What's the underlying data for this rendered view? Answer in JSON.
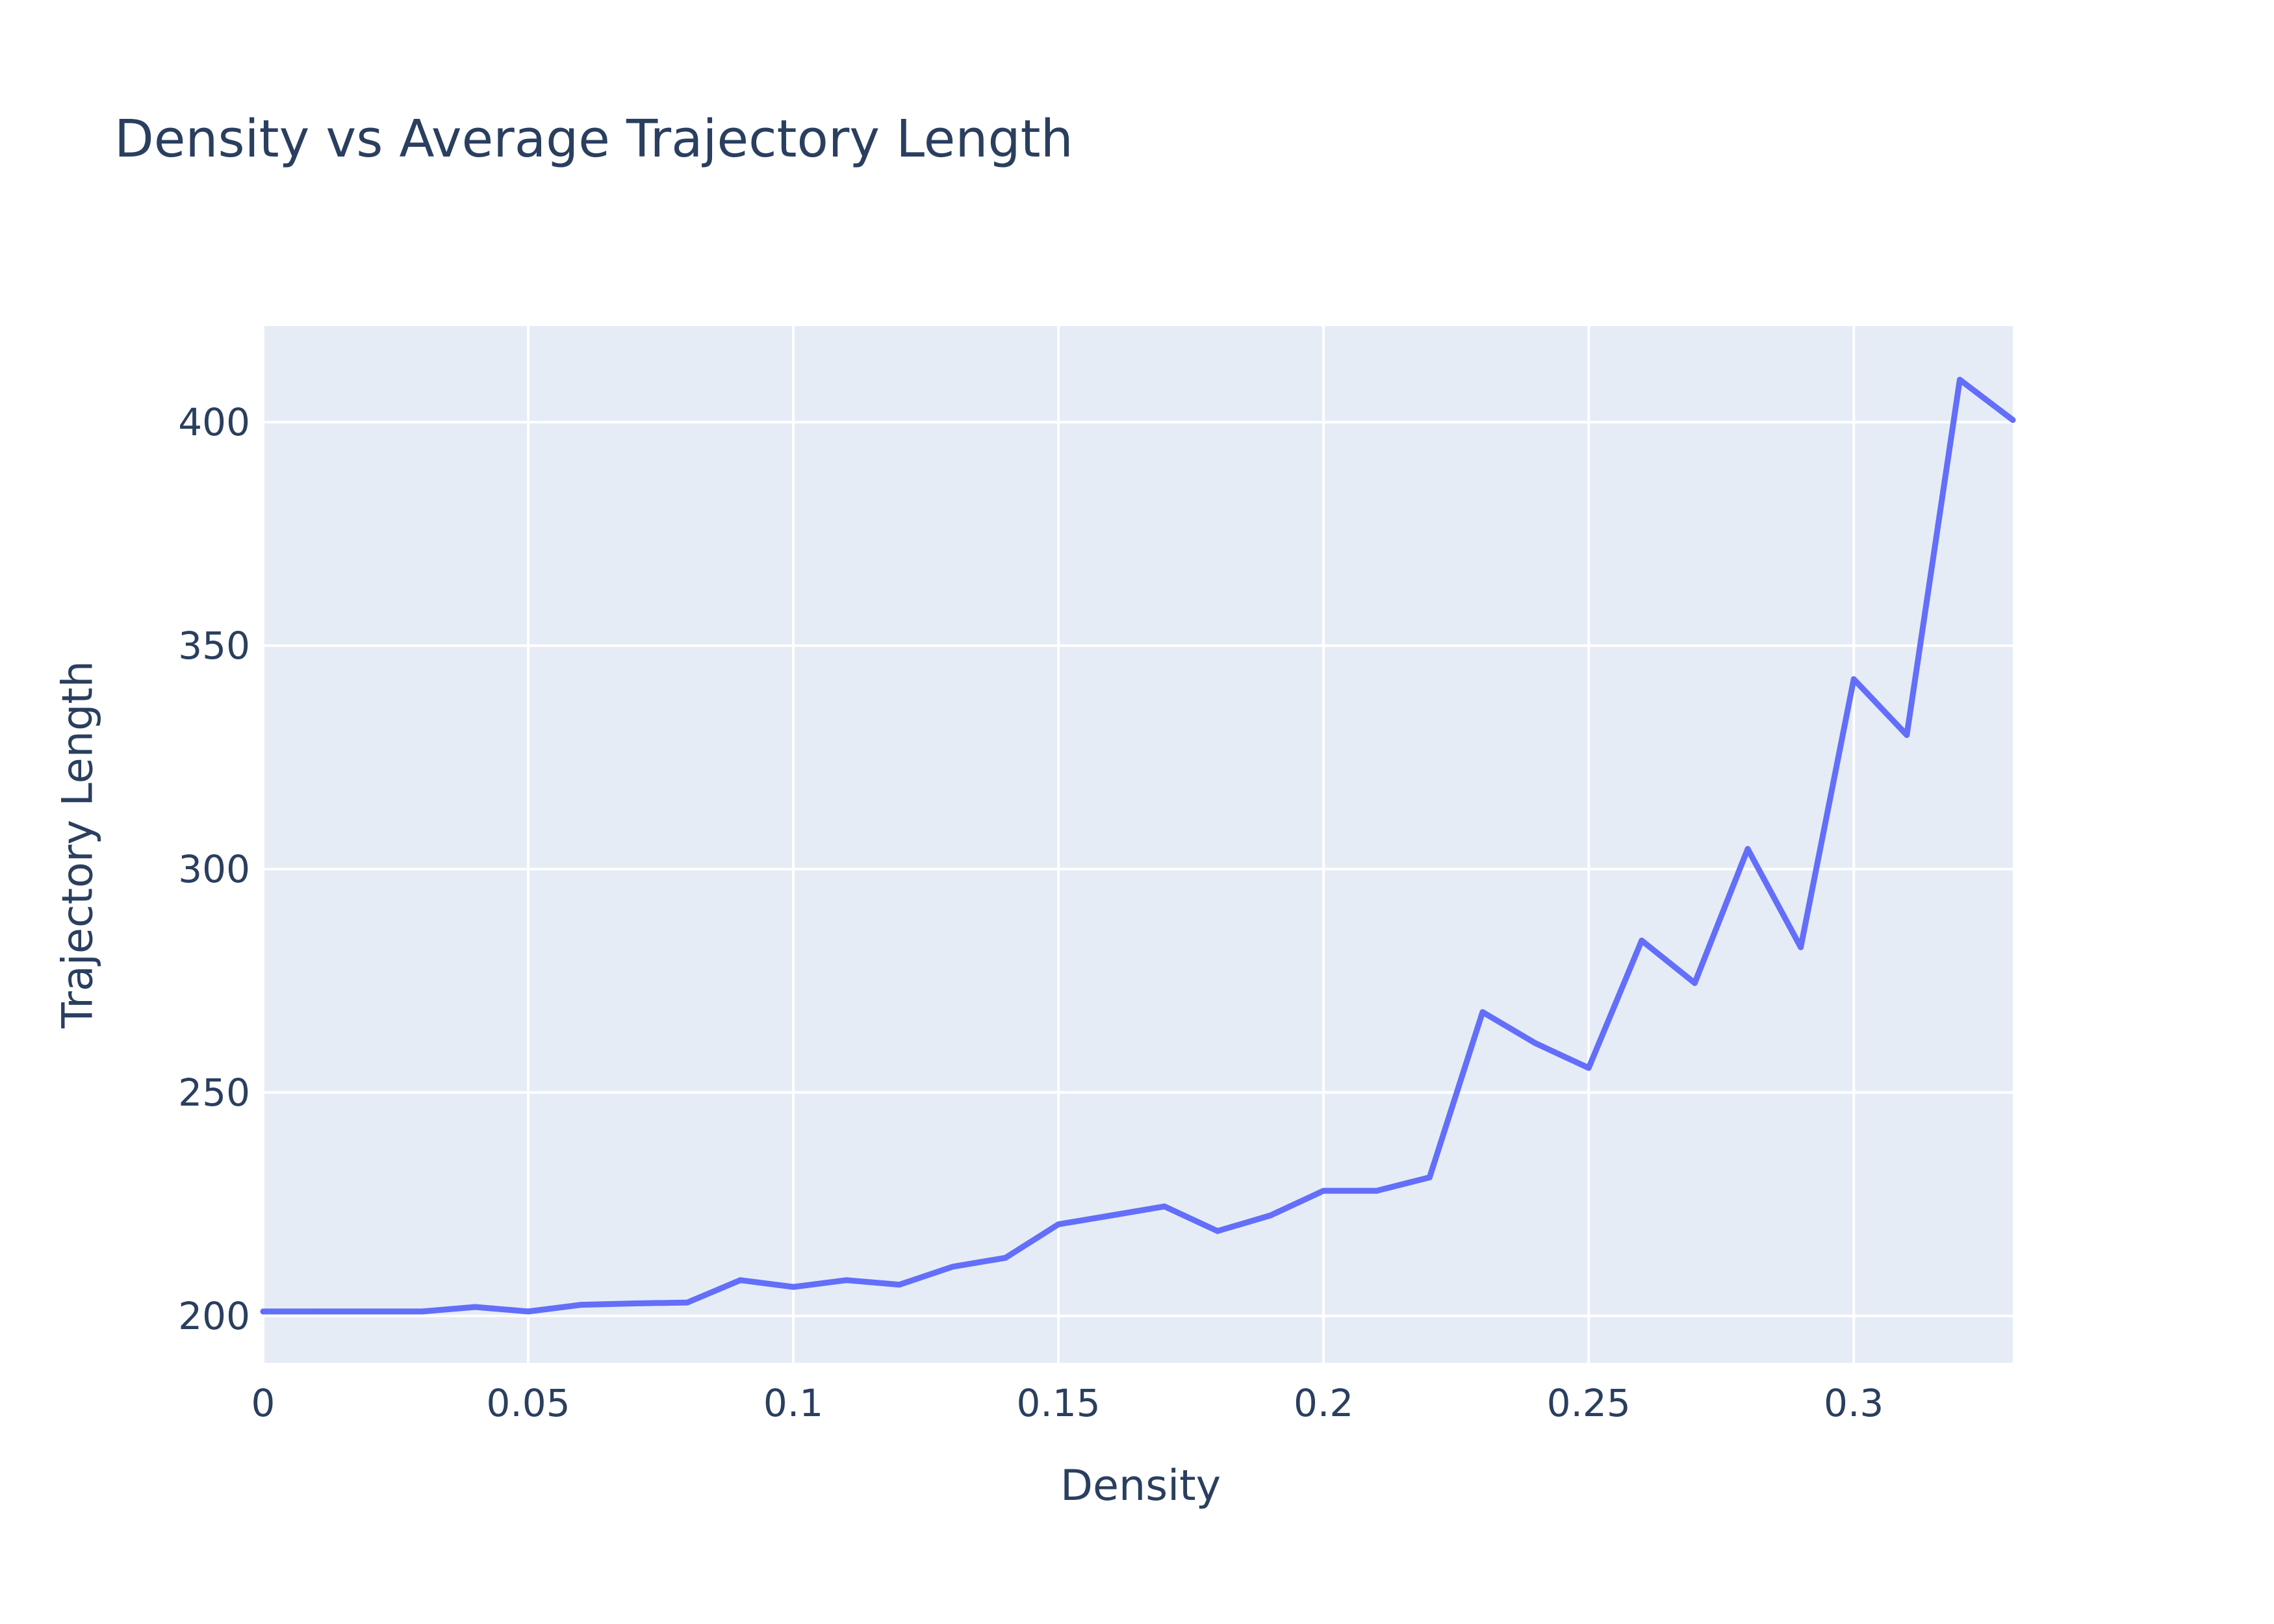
{
  "chart_data": {
    "type": "line",
    "title": "Density vs Average Trajectory Length",
    "xlabel": "Density",
    "ylabel": "Trajectory Length",
    "xlim": [
      0,
      0.33
    ],
    "ylim": [
      189.5,
      421.5
    ],
    "x_ticks": [
      0,
      0.05,
      0.1,
      0.15,
      0.2,
      0.25,
      0.3
    ],
    "x_tick_labels": [
      "0",
      "0.05",
      "0.1",
      "0.15",
      "0.2",
      "0.25",
      "0.3"
    ],
    "y_ticks": [
      200,
      250,
      300,
      350,
      400
    ],
    "y_tick_labels": [
      "200",
      "250",
      "300",
      "350",
      "400"
    ],
    "grid": true,
    "colors": {
      "plot_bg": "#e5ecf6",
      "grid": "#ffffff",
      "line": "#636efa",
      "text": "#2a3f5f"
    },
    "series": [
      {
        "x": [
          0,
          0.01,
          0.02,
          0.03,
          0.04,
          0.05,
          0.06,
          0.07,
          0.08,
          0.09,
          0.1,
          0.11,
          0.12,
          0.13,
          0.14,
          0.15,
          0.16,
          0.17,
          0.18,
          0.19,
          0.2,
          0.21,
          0.22,
          0.23,
          0.24,
          0.25,
          0.26,
          0.27,
          0.28,
          0.29,
          0.3,
          0.31,
          0.32,
          0.33
        ],
        "values": [
          201,
          201,
          201,
          201,
          202,
          201,
          202.5,
          202.8,
          203,
          208,
          206.5,
          208,
          207,
          211,
          213,
          220.5,
          222.5,
          224.5,
          219,
          222.5,
          228,
          228,
          231,
          268,
          261,
          255.5,
          284,
          274.5,
          304.5,
          282.5,
          342.5,
          330,
          409.5,
          400.5
        ]
      }
    ]
  }
}
